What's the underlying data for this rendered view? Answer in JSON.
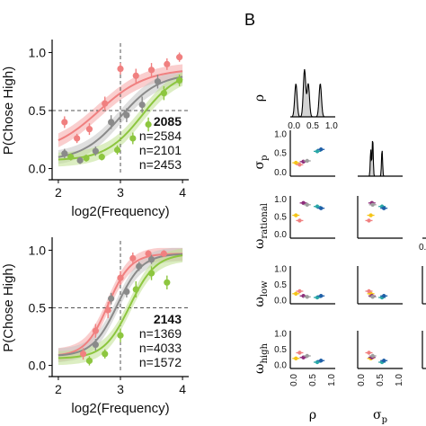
{
  "panel_b": {
    "letter": "B"
  },
  "colors": {
    "red": "#f08080",
    "gray": "#8a8a8a",
    "green": "#8dc63f",
    "band_red": "#f6a6a6",
    "band_gray": "#c4c4c4",
    "band_green": "#bfe08f",
    "band_overlap": "#a89a74"
  },
  "chart_data": [
    {
      "type": "scatter",
      "id": "top-psychometric",
      "xlabel": "log2(Frequency)",
      "ylabel": "P(Chose High)",
      "xlim": [
        1.9,
        4.1
      ],
      "ylim": [
        -0.05,
        1.05
      ],
      "xticks": [
        "2",
        "3",
        "4"
      ],
      "yticks": [
        "0.0",
        "0.5",
        "1.0"
      ],
      "ref_x": 3,
      "ref_y": 0.5,
      "subject_label": "2085",
      "series": [
        {
          "name": "n=2584",
          "color_key": "red",
          "x": [
            2.1,
            2.3,
            2.5,
            2.75,
            3.0,
            3.25,
            3.5,
            3.75,
            3.95
          ],
          "y": [
            0.4,
            0.26,
            0.34,
            0.56,
            0.86,
            0.8,
            0.85,
            0.9,
            0.96
          ],
          "err": [
            0.05,
            0.04,
            0.05,
            0.06,
            0.05,
            0.06,
            0.06,
            0.05,
            0.04
          ],
          "fit": {
            "x0": 2.65,
            "k": 2.6,
            "lo": 0.13,
            "hi": 0.86
          }
        },
        {
          "name": "n=2101",
          "color_key": "gray",
          "x": [
            2.1,
            2.35,
            2.6,
            2.85,
            3.1,
            3.35,
            3.6
          ],
          "y": [
            0.13,
            0.07,
            0.15,
            0.4,
            0.46,
            0.55,
            0.75
          ],
          "err": [
            0.04,
            0.03,
            0.04,
            0.06,
            0.06,
            0.07,
            0.06
          ],
          "fit": {
            "x0": 3.0,
            "k": 3.2,
            "lo": 0.07,
            "hi": 0.82
          }
        },
        {
          "name": "n=2453",
          "color_key": "green",
          "x": [
            2.2,
            2.45,
            2.7,
            2.95,
            3.2,
            3.45,
            3.7,
            3.95
          ],
          "y": [
            0.1,
            0.09,
            0.1,
            0.16,
            0.26,
            0.38,
            0.65,
            0.76
          ],
          "err": [
            0.03,
            0.03,
            0.03,
            0.04,
            0.05,
            0.06,
            0.06,
            0.05
          ],
          "fit": {
            "x0": 3.35,
            "k": 3.4,
            "lo": 0.07,
            "hi": 0.85
          }
        }
      ]
    },
    {
      "type": "scatter",
      "id": "bottom-psychometric",
      "xlabel": "log2(Frequency)",
      "ylabel": "P(Chose High)",
      "xlim": [
        1.9,
        4.1
      ],
      "ylim": [
        -0.05,
        1.05
      ],
      "xticks": [
        "2",
        "3",
        "4"
      ],
      "yticks": [
        "0.0",
        "0.5",
        "1.0"
      ],
      "ref_x": 3,
      "ref_y": 0.5,
      "subject_label": "2143",
      "series": [
        {
          "name": "n=1369",
          "color_key": "red",
          "x": [
            2.4,
            2.6,
            2.8,
            3.0,
            3.2,
            3.45,
            3.7
          ],
          "y": [
            0.1,
            0.3,
            0.48,
            0.76,
            0.93,
            0.97,
            0.97
          ],
          "err": [
            0.05,
            0.06,
            0.07,
            0.06,
            0.05,
            0.03,
            0.03
          ],
          "fit": {
            "x0": 2.8,
            "k": 5.5,
            "lo": 0.08,
            "hi": 0.97
          }
        },
        {
          "name": "n=4033",
          "color_key": "gray",
          "x": [
            2.6,
            2.85,
            3.1,
            3.3,
            3.5
          ],
          "y": [
            0.18,
            0.58,
            0.64,
            0.86,
            0.92
          ],
          "err": [
            0.05,
            0.05,
            0.05,
            0.04,
            0.04
          ],
          "fit": {
            "x0": 2.95,
            "k": 5.0,
            "lo": 0.08,
            "hi": 0.97
          }
        },
        {
          "name": "n=1572",
          "color_key": "green",
          "x": [
            2.5,
            2.75,
            3.0,
            3.25,
            3.5,
            3.75
          ],
          "y": [
            0.04,
            0.1,
            0.26,
            0.66,
            0.8,
            0.72
          ],
          "err": [
            0.04,
            0.04,
            0.06,
            0.07,
            0.06,
            0.06
          ],
          "fit": {
            "x0": 3.15,
            "k": 4.8,
            "lo": 0.06,
            "hi": 0.97
          }
        }
      ]
    },
    {
      "type": "scatter",
      "id": "posterior-pairs",
      "row_labels": [
        {
          "base": "ρ",
          "sub": ""
        },
        {
          "base": "σ",
          "sub": "p"
        },
        {
          "base": "ω",
          "sub": "rational"
        },
        {
          "base": "ω",
          "sub": "low"
        },
        {
          "base": "ω",
          "sub": "high"
        }
      ],
      "col_labels": [
        {
          "base": "ρ",
          "sub": ""
        },
        {
          "base": "σ",
          "sub": "p"
        }
      ],
      "xticks": [
        "0.0",
        "0.5",
        "1.0"
      ],
      "yticks": [
        "0.0",
        "0.5",
        "1.0"
      ],
      "partial_tick": "0.",
      "xlim": [
        -0.1,
        1.1
      ],
      "ylim": [
        -0.1,
        1.1
      ],
      "points": [
        {
          "color": "#f5c518",
          "rho": 0.05,
          "sigma": 0.25,
          "w_rational": 0.55,
          "w_low": 0.22,
          "w_high": 0.22
        },
        {
          "color": "#f08080",
          "rho": 0.15,
          "sigma": 0.2,
          "w_rational": 0.4,
          "w_low": 0.3,
          "w_high": 0.4
        },
        {
          "color": "#8e2c7b",
          "rho": 0.25,
          "sigma": 0.28,
          "w_rational": 0.9,
          "w_low": 0.15,
          "w_high": 0.25
        },
        {
          "color": "#9e9e9e",
          "rho": 0.35,
          "sigma": 0.3,
          "w_rational": 0.85,
          "w_low": 0.12,
          "w_high": 0.3
        },
        {
          "color": "#2aa7a7",
          "rho": 0.62,
          "sigma": 0.55,
          "w_rational": 0.8,
          "w_low": 0.1,
          "w_high": 0.1
        },
        {
          "color": "#1f5fa8",
          "rho": 0.72,
          "sigma": 0.6,
          "w_rational": 0.75,
          "w_low": 0.15,
          "w_high": 0.15
        }
      ],
      "rho_density_peaks": [
        0.05,
        0.28,
        0.38,
        0.7
      ],
      "sigma_density_peaks": [
        0.25,
        0.3,
        0.55
      ]
    }
  ]
}
